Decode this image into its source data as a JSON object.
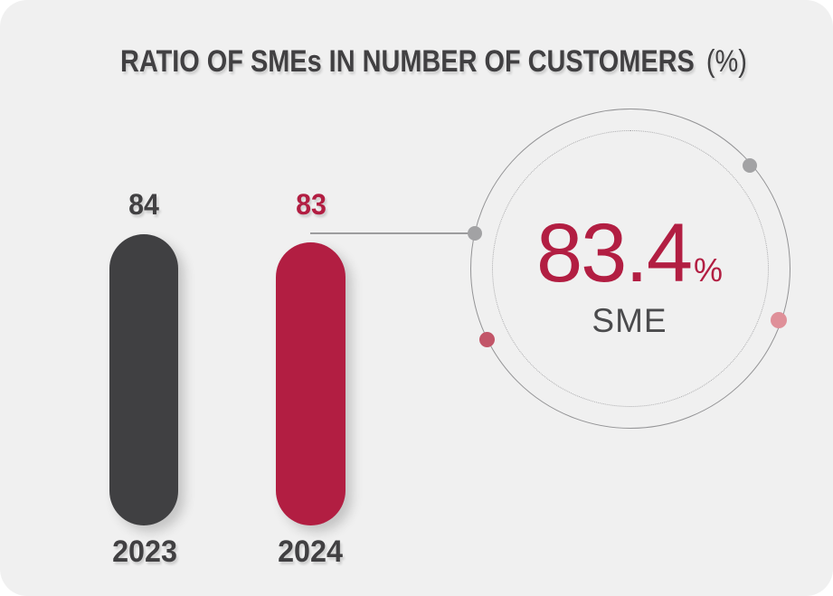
{
  "header": {
    "title": "RATIO OF SMEs IN NUMBER OF CUSTOMERS",
    "unit_suffix": "(%)"
  },
  "chart_data": {
    "type": "bar",
    "title": "RATIO OF SMEs IN NUMBER OF CUSTOMERS (%)",
    "categories": [
      "2023",
      "2024"
    ],
    "values": [
      84,
      83
    ],
    "xlabel": "",
    "ylabel": "",
    "unit": "%",
    "ylim": [
      0,
      100
    ],
    "grid": false,
    "legend": "none",
    "series_colors": [
      "#404042",
      "#b21e42"
    ],
    "callout": {
      "value": "83.4",
      "unit": "%",
      "label": "SME",
      "refers_to": "2024"
    }
  },
  "colors": {
    "page_background": "#ffffff",
    "card_background": "#f0f0f0",
    "accent_red": "#b21e42",
    "dark_gray": "#404042",
    "outer_circle_stroke": "#939395",
    "inner_dotted_stroke": "#ababad",
    "leader_line": "#9c9c9e",
    "dot_gray": "#a2a2a4",
    "dot_rose": "#c25568",
    "dot_pink": "#df9099",
    "callout_label_gray": "#4b4b4d"
  }
}
